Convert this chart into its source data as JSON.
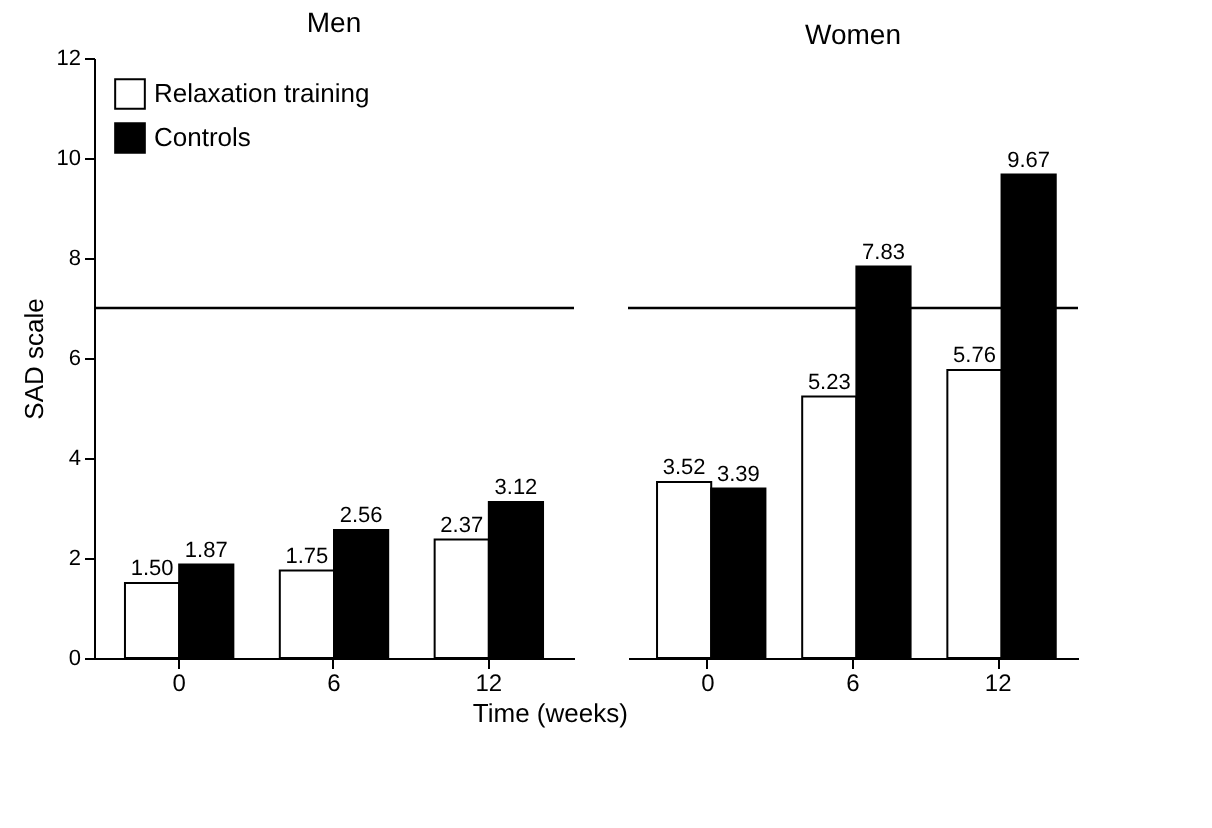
{
  "chart_data": [
    {
      "type": "bar",
      "title": "Men",
      "xlabel": "Time (weeks)",
      "ylabel": "SAD scale",
      "categories": [
        "0",
        "6",
        "12"
      ],
      "series": [
        {
          "name": "Relaxation training",
          "color": "#ffffff",
          "values": [
            1.5,
            1.75,
            2.37
          ],
          "value_labels": [
            "1.50",
            "1.75",
            "2.37"
          ]
        },
        {
          "name": "Controls",
          "color": "#000000",
          "values": [
            1.87,
            2.56,
            3.12
          ],
          "value_labels": [
            "1.87",
            "2.56",
            "3.12"
          ]
        }
      ],
      "ylim": [
        0,
        12
      ],
      "yticks": [
        0,
        2,
        4,
        6,
        8,
        10,
        12
      ],
      "ref_lines": [
        {
          "axis": "y",
          "value": 7
        }
      ],
      "legend": "top left"
    },
    {
      "type": "bar",
      "title": "Women",
      "categories": [
        "0",
        "6",
        "12"
      ],
      "series": [
        {
          "color": "#ffffff",
          "values": [
            3.52,
            5.23,
            5.76
          ],
          "value_labels": [
            "3.52",
            "5.23",
            "5.76"
          ]
        },
        {
          "color": "#000000",
          "values": [
            3.39,
            7.83,
            9.67
          ],
          "value_labels": [
            "3.39",
            "7.83",
            "9.67"
          ]
        }
      ],
      "ylim": [
        0,
        12
      ],
      "yticks": [
        0,
        2,
        4,
        6,
        8,
        10,
        12
      ],
      "ref_lines": [
        {
          "axis": "y",
          "value": 7
        }
      ],
      "tick_labels": "x"
    }
  ]
}
